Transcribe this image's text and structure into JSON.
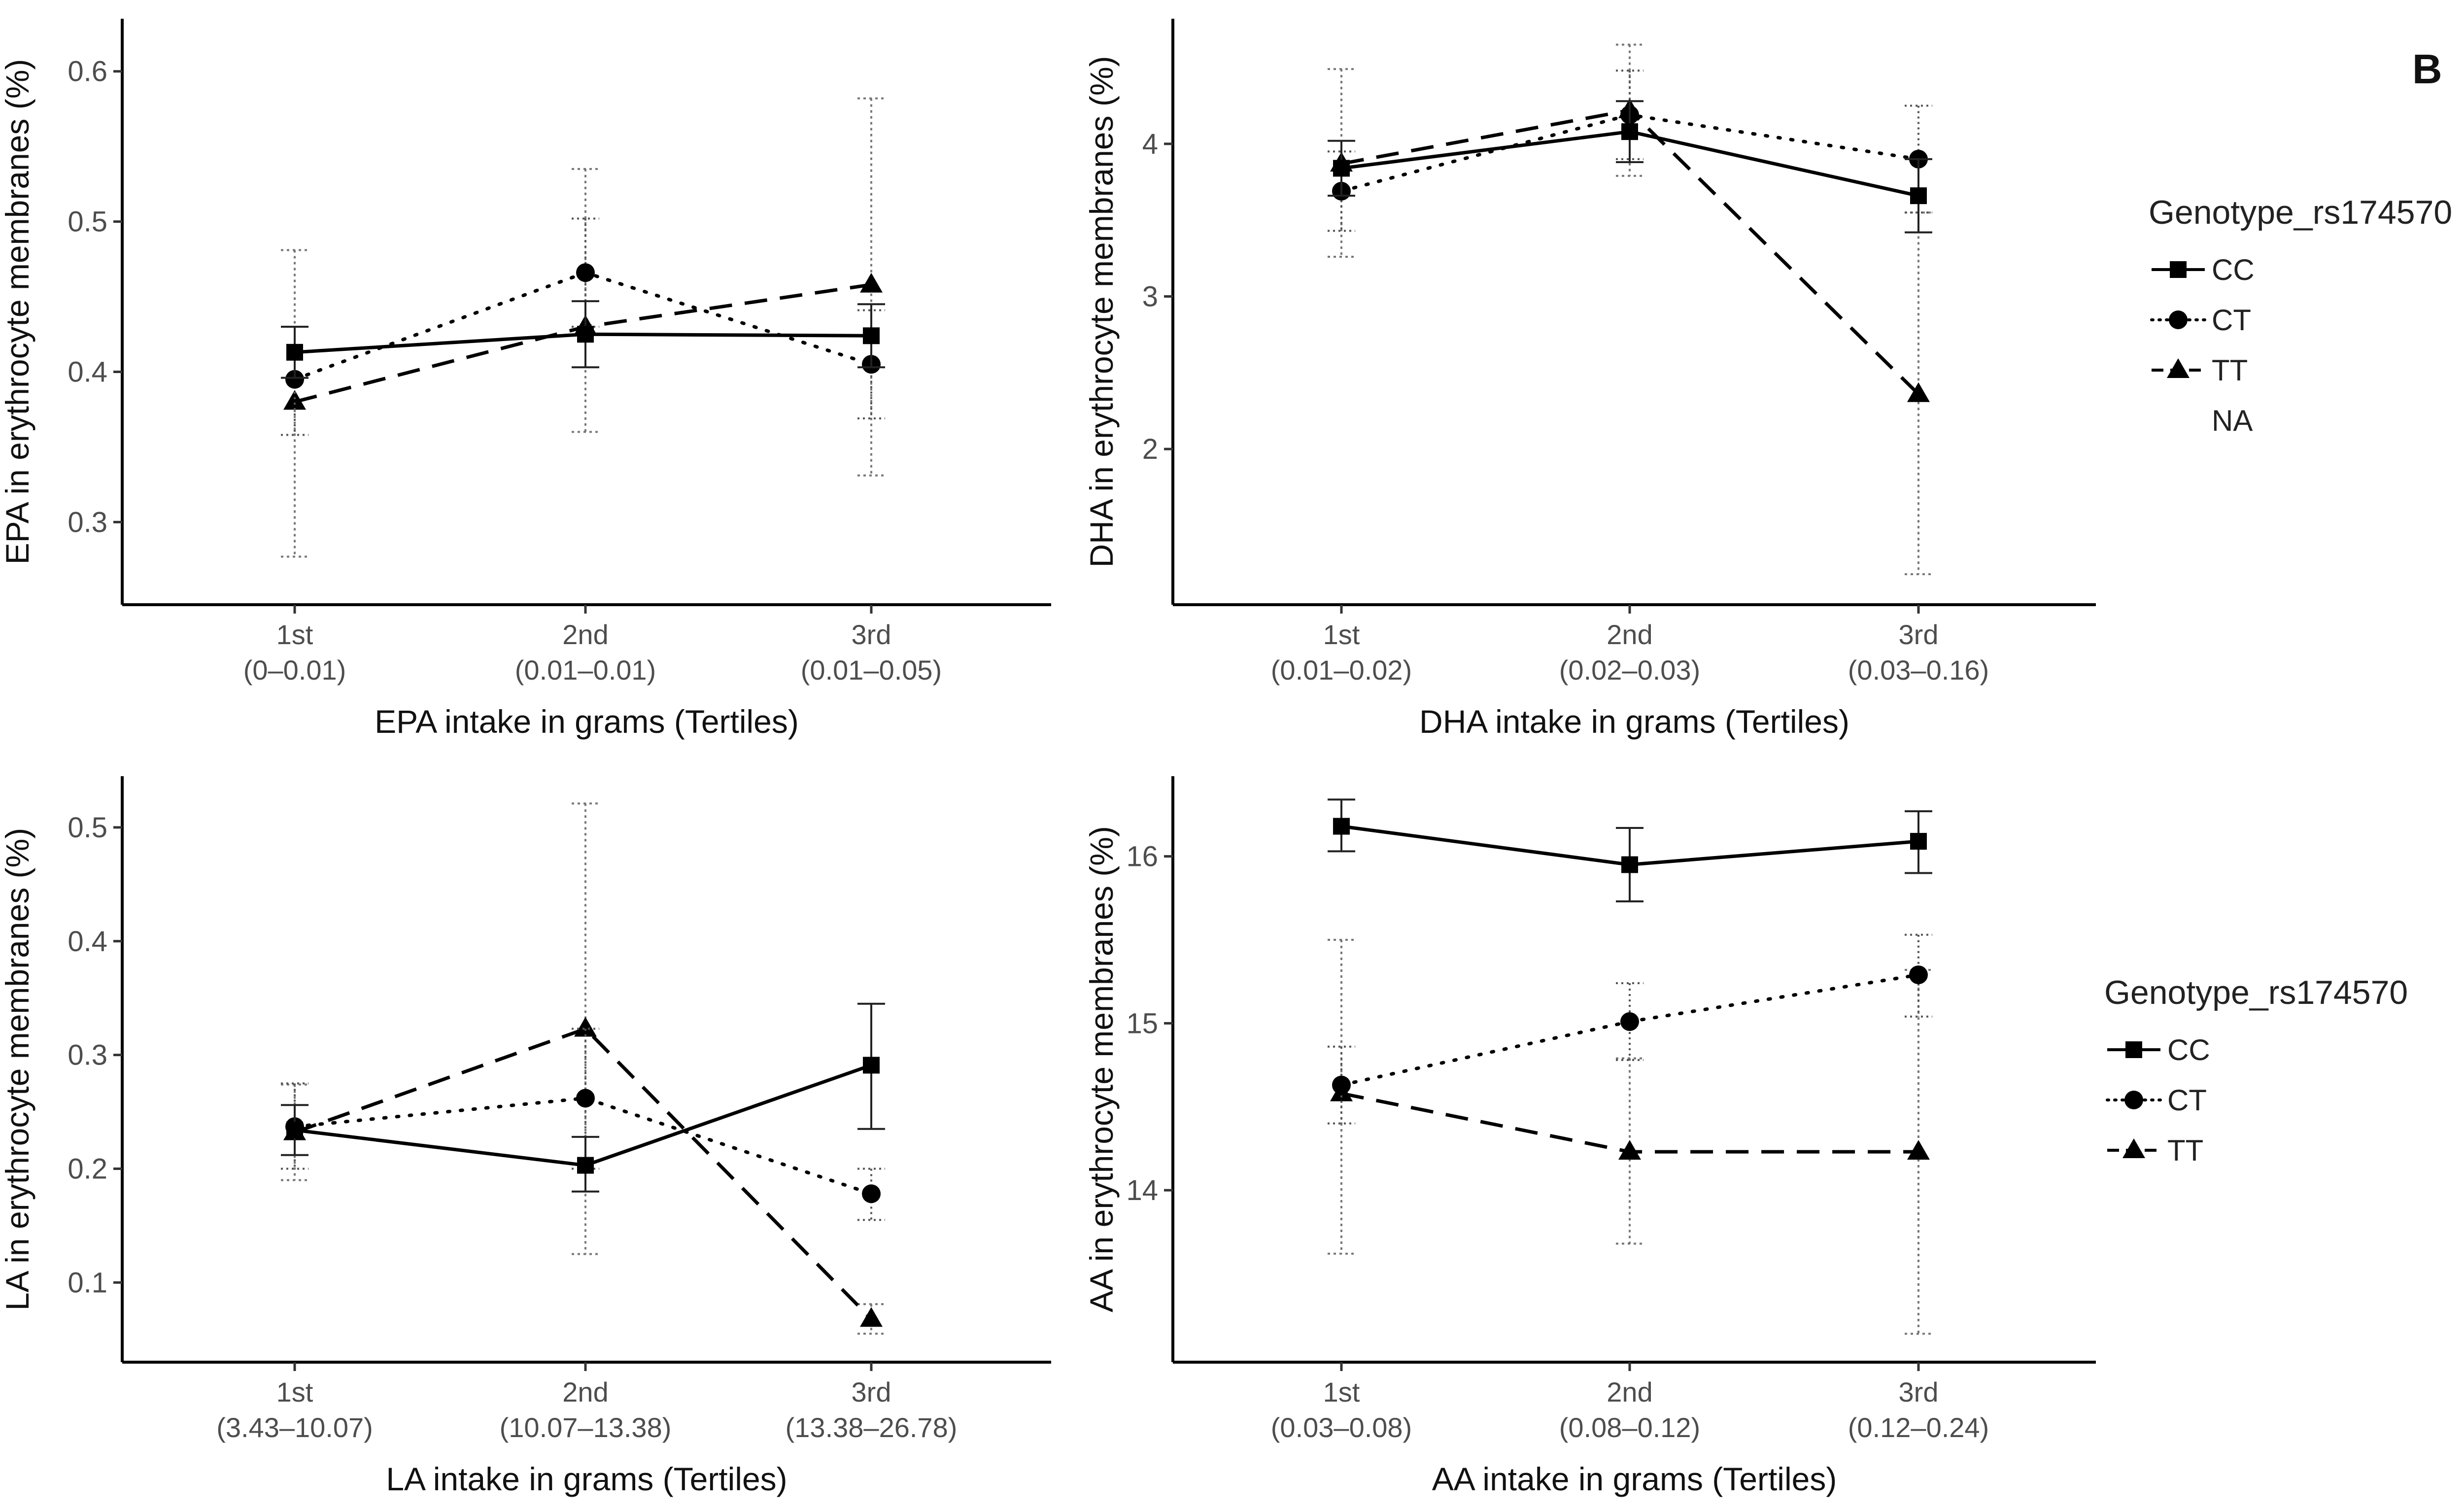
{
  "figure_label": "B",
  "legends": [
    {
      "title": "Genotype_rs174570",
      "items": [
        {
          "label": "CC",
          "shape": "square",
          "dash": "solid"
        },
        {
          "label": "CT",
          "shape": "circle",
          "dash": "dotted"
        },
        {
          "label": "TT",
          "shape": "triangle",
          "dash": "dashed"
        },
        {
          "label": "NA",
          "shape": "none",
          "dash": "none"
        }
      ]
    },
    {
      "title": "Genotype_rs174570",
      "items": [
        {
          "label": "CC",
          "shape": "square",
          "dash": "solid"
        },
        {
          "label": "CT",
          "shape": "circle",
          "dash": "dotted"
        },
        {
          "label": "TT",
          "shape": "triangle",
          "dash": "dashed"
        }
      ]
    }
  ],
  "chart_data": [
    {
      "type": "line",
      "title": "",
      "xlabel": "EPA intake in grams (Tertiles)",
      "ylabel": "EPA in erythrocyte membranes (%)",
      "categories": [
        "1st\n(0–0.01)",
        "2nd\n(0.01–0.01)",
        "3rd\n(0.01–0.05)"
      ],
      "ylim": [
        0.245,
        0.635
      ],
      "yticks": [
        0.3,
        0.4,
        0.5,
        0.6
      ],
      "ytick_labels": [
        "0.3",
        "0.4",
        "0.5",
        "0.6"
      ],
      "series": [
        {
          "name": "CC",
          "values": [
            0.413,
            0.425,
            0.424
          ],
          "err_low": [
            0.396,
            0.403,
            0.403
          ],
          "err_high": [
            0.43,
            0.447,
            0.445
          ]
        },
        {
          "name": "CT",
          "values": [
            0.395,
            0.466,
            0.405
          ],
          "err_low": [
            0.358,
            0.43,
            0.369
          ],
          "err_high": [
            0.43,
            0.502,
            0.441
          ]
        },
        {
          "name": "TT",
          "values": [
            0.38,
            0.43,
            0.458
          ],
          "err_low": [
            0.277,
            0.36,
            0.331
          ],
          "err_high": [
            0.481,
            0.535,
            0.582
          ]
        }
      ]
    },
    {
      "type": "line",
      "title": "",
      "xlabel": "DHA intake in grams (Tertiles)",
      "ylabel": "DHA in erythrocyte membranes (%)",
      "categories": [
        "1st\n(0.01–0.02)",
        "2nd\n(0.02–0.03)",
        "3rd\n(0.03–0.16)"
      ],
      "ylim": [
        0.98,
        4.82
      ],
      "yticks": [
        2,
        3,
        4
      ],
      "ytick_labels": [
        "2",
        "3",
        "4"
      ],
      "series": [
        {
          "name": "CC",
          "values": [
            3.84,
            4.08,
            3.66
          ],
          "err_low": [
            3.66,
            3.88,
            3.42
          ],
          "err_high": [
            4.02,
            4.28,
            3.9
          ]
        },
        {
          "name": "CT",
          "values": [
            3.69,
            4.19,
            3.9
          ],
          "err_low": [
            3.43,
            3.9,
            3.55
          ],
          "err_high": [
            3.95,
            4.48,
            4.25
          ]
        },
        {
          "name": "TT",
          "values": [
            3.87,
            4.22,
            2.36
          ],
          "err_low": [
            3.26,
            3.79,
            1.18
          ],
          "err_high": [
            4.49,
            4.65,
            3.55
          ]
        }
      ]
    },
    {
      "type": "line",
      "title": "",
      "xlabel": "LA intake in grams (Tertiles)",
      "ylabel": "LA in erythrocyte membranes (%)",
      "categories": [
        "1st\n(3.43–10.07)",
        "2nd\n(10.07–13.38)",
        "3rd\n(13.38–26.78)"
      ],
      "ylim": [
        0.03,
        0.545
      ],
      "yticks": [
        0.1,
        0.2,
        0.3,
        0.4,
        0.5
      ],
      "ytick_labels": [
        "0.1",
        "0.2",
        "0.3",
        "0.4",
        "0.5"
      ],
      "series": [
        {
          "name": "CC",
          "values": [
            0.234,
            0.203,
            0.291
          ],
          "err_low": [
            0.212,
            0.18,
            0.235
          ],
          "err_high": [
            0.256,
            0.228,
            0.345
          ]
        },
        {
          "name": "CT",
          "values": [
            0.237,
            0.262,
            0.178
          ],
          "err_low": [
            0.2,
            0.2,
            0.155
          ],
          "err_high": [
            0.275,
            0.323,
            0.2
          ]
        },
        {
          "name": "TT",
          "values": [
            0.232,
            0.323,
            0.068
          ],
          "err_low": [
            0.19,
            0.125,
            0.055
          ],
          "err_high": [
            0.274,
            0.521,
            0.081
          ]
        }
      ]
    },
    {
      "type": "line",
      "title": "",
      "xlabel": "AA intake in grams (Tertiles)",
      "ylabel": "AA in erythrocyte membranes (%)",
      "categories": [
        "1st\n(0.03–0.08)",
        "2nd\n(0.08–0.12)",
        "3rd\n(0.12–0.24)"
      ],
      "ylim": [
        12.97,
        16.48
      ],
      "yticks": [
        14,
        15,
        16
      ],
      "ytick_labels": [
        "14",
        "15",
        "16"
      ],
      "series": [
        {
          "name": "CC",
          "values": [
            16.18,
            15.95,
            16.09
          ],
          "err_low": [
            16.03,
            15.73,
            15.9
          ],
          "err_high": [
            16.34,
            16.17,
            16.27
          ]
        },
        {
          "name": "CT",
          "values": [
            14.63,
            15.01,
            15.29
          ],
          "err_low": [
            14.4,
            14.78,
            15.04
          ],
          "err_high": [
            14.86,
            15.24,
            15.53
          ]
        },
        {
          "name": "TT",
          "values": [
            14.58,
            14.23,
            14.23
          ],
          "err_low": [
            13.62,
            13.68,
            13.14
          ],
          "err_high": [
            15.5,
            14.79,
            15.32
          ]
        }
      ]
    }
  ]
}
